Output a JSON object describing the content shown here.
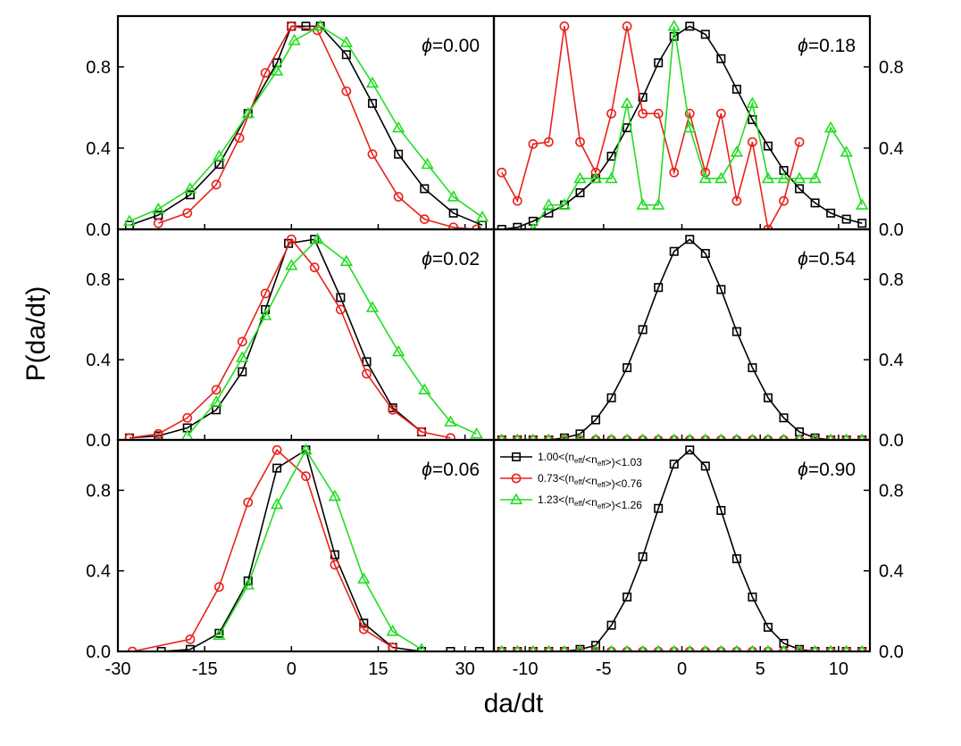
{
  "figure": {
    "ylabel": "P(da/dt)",
    "xlabel": "da/dt"
  },
  "legend": [
    {
      "label": "1.00<(n_eff/<n_eff>)<1.03",
      "prefix": "1.00<(n",
      "sub1": "eff",
      "mid": "/<n",
      "sub2": "eff",
      "suffix": ">)<1.03",
      "color": "#000000",
      "marker": "square"
    },
    {
      "label": "0.73<(n_eff/<n_eff>)<0.76",
      "prefix": "0.73<(n",
      "sub1": "eff",
      "mid": "/<n",
      "sub2": "eff",
      "suffix": ">)<0.76",
      "color": "#e8221c",
      "marker": "circle"
    },
    {
      "label": "1.23<(n_eff/<n_eff>)<1.26",
      "prefix": "1.23<(n",
      "sub1": "eff",
      "mid": "/<n",
      "sub2": "eff",
      "suffix": ">)<1.26",
      "color": "#22dd22",
      "marker": "triangle"
    }
  ],
  "chart_data": [
    {
      "type": "line",
      "panel": "top-left",
      "annotation": "ϕ=0.00",
      "xlim": [
        -30,
        35
      ],
      "ylim": [
        0,
        1.05
      ],
      "xticks": [
        -30,
        -15,
        0,
        15,
        30
      ],
      "yticks": [
        0.0,
        0.4,
        0.8
      ],
      "ytick_labels": [
        "0.0",
        "0.4",
        "0.8"
      ],
      "series": [
        {
          "name": "1.00<(n_eff/<n_eff>)<1.03",
          "color": "#000000",
          "marker": "square",
          "x": [
            -28,
            -23,
            -17.5,
            -12.5,
            -7.5,
            -2.5,
            0,
            2.5,
            5,
            9.5,
            14,
            18.5,
            23,
            28,
            33
          ],
          "y": [
            0.02,
            0.07,
            0.17,
            0.32,
            0.57,
            0.82,
            1.0,
            1.0,
            1.0,
            0.86,
            0.62,
            0.37,
            0.2,
            0.08,
            0.02
          ]
        },
        {
          "name": "0.73<(n_eff/<n_eff>)<0.76",
          "color": "#e8221c",
          "marker": "circle",
          "x": [
            -23,
            -18,
            -13,
            -9,
            -4.5,
            0,
            4.5,
            9.5,
            14,
            18.5,
            23,
            28,
            32
          ],
          "y": [
            0.03,
            0.08,
            0.22,
            0.45,
            0.77,
            1.0,
            0.98,
            0.68,
            0.37,
            0.16,
            0.05,
            0.01,
            0.0
          ]
        },
        {
          "name": "1.23<(n_eff/<n_eff>)<1.26",
          "color": "#22dd22",
          "marker": "triangle",
          "x": [
            -28,
            -23,
            -17.5,
            -12.5,
            -7.5,
            -2.5,
            0.5,
            5,
            9.5,
            14,
            18.5,
            23.5,
            28,
            33
          ],
          "y": [
            0.04,
            0.1,
            0.2,
            0.36,
            0.57,
            0.78,
            0.93,
            1.0,
            0.92,
            0.72,
            0.5,
            0.32,
            0.16,
            0.06
          ]
        }
      ]
    },
    {
      "type": "line",
      "panel": "middle-left",
      "annotation": "ϕ=0.02",
      "xlim": [
        -30,
        35
      ],
      "ylim": [
        0,
        1.05
      ],
      "xticks": [
        -30,
        -15,
        0,
        15,
        30
      ],
      "yticks": [
        0.0,
        0.4,
        0.8
      ],
      "ytick_labels": [
        "0.0",
        "0.4",
        "0.8"
      ],
      "series": [
        {
          "name": "1.00<(n_eff/<n_eff>)<1.03",
          "color": "#000000",
          "marker": "square",
          "x": [
            -28,
            -23,
            -18,
            -13,
            -8.5,
            -4.5,
            -0.5,
            4,
            8.5,
            13,
            17.5,
            22.5
          ],
          "y": [
            0.01,
            0.02,
            0.06,
            0.15,
            0.34,
            0.65,
            0.98,
            1.0,
            0.71,
            0.39,
            0.16,
            0.04
          ]
        },
        {
          "name": "0.73<(n_eff/<n_eff>)<0.76",
          "color": "#e8221c",
          "marker": "circle",
          "x": [
            -28,
            -23,
            -18,
            -13,
            -8.5,
            -4.5,
            0,
            4,
            8.5,
            13,
            17.5,
            22.5,
            27.5
          ],
          "y": [
            0.01,
            0.03,
            0.11,
            0.25,
            0.49,
            0.73,
            1.0,
            0.86,
            0.65,
            0.33,
            0.15,
            0.04,
            0.01
          ]
        },
        {
          "name": "1.23<(n_eff/<n_eff>)<1.26",
          "color": "#22dd22",
          "marker": "triangle",
          "x": [
            -18,
            -13,
            -8.5,
            -4.5,
            0,
            4.5,
            9.5,
            14,
            18.5,
            23,
            27.5,
            32
          ],
          "y": [
            0.02,
            0.19,
            0.41,
            0.62,
            0.87,
            1.0,
            0.89,
            0.66,
            0.44,
            0.25,
            0.09,
            0.03
          ]
        }
      ]
    },
    {
      "type": "line",
      "panel": "bottom-left",
      "annotation": "ϕ=0.06",
      "xlim": [
        -30,
        35
      ],
      "ylim": [
        0,
        1.05
      ],
      "xticks": [
        -30,
        -15,
        0,
        15,
        30
      ],
      "yticks": [
        0.0,
        0.4,
        0.8
      ],
      "xtick_labels": [
        "-30",
        "-15",
        "0",
        "15",
        "30"
      ],
      "ytick_labels": [
        "0.0",
        "0.4",
        "0.8"
      ],
      "series": [
        {
          "name": "1.00<(n_eff/<n_eff>)<1.03",
          "color": "#000000",
          "marker": "square",
          "x": [
            -22.5,
            -17.5,
            -12.5,
            -7.5,
            -2.5,
            2.5,
            7.5,
            12.5,
            17.5,
            22.5,
            27.5,
            32.5
          ],
          "y": [
            0.0,
            0.01,
            0.09,
            0.35,
            0.91,
            1.0,
            0.48,
            0.14,
            0.02,
            0.0,
            0.0,
            0.0
          ]
        },
        {
          "name": "0.73<(n_eff/<n_eff>)<0.76",
          "color": "#e8221c",
          "marker": "circle",
          "x": [
            -27.5,
            -17.5,
            -12.5,
            -7.5,
            -2.5,
            2.5,
            7.5,
            12.5,
            17.5
          ],
          "y": [
            0.0,
            0.06,
            0.32,
            0.74,
            1.0,
            0.87,
            0.43,
            0.11,
            0.02
          ]
        },
        {
          "name": "1.23<(n_eff/<n_eff>)<1.26",
          "color": "#22dd22",
          "marker": "triangle",
          "x": [
            -12.5,
            -7.5,
            -2.5,
            2.5,
            7.5,
            12.5,
            17.5,
            22.5
          ],
          "y": [
            0.08,
            0.33,
            0.73,
            1.0,
            0.77,
            0.36,
            0.1,
            0.01
          ]
        }
      ]
    },
    {
      "type": "line",
      "panel": "top-right",
      "annotation": "ϕ=0.18",
      "xlim": [
        -12,
        12
      ],
      "ylim": [
        0,
        1.05
      ],
      "xticks": [
        -10,
        -5,
        0,
        5,
        10
      ],
      "yticks": [
        0.0,
        0.4,
        0.8
      ],
      "ytick_labels": [
        "0.0",
        "0.4",
        "0.8"
      ],
      "series": [
        {
          "name": "1.00<(n_eff/<n_eff>)<1.03",
          "color": "#000000",
          "marker": "square",
          "x": [
            -11.5,
            -10.5,
            -9.5,
            -8.5,
            -7.5,
            -6.5,
            -5.5,
            -4.5,
            -3.5,
            -2.5,
            -1.5,
            -0.5,
            0.5,
            1.5,
            2.5,
            3.5,
            4.5,
            5.5,
            6.5,
            7.5,
            8.5,
            9.5,
            10.5,
            11.5
          ],
          "y": [
            0.0,
            0.01,
            0.04,
            0.08,
            0.12,
            0.18,
            0.25,
            0.36,
            0.5,
            0.65,
            0.82,
            0.95,
            1.0,
            0.96,
            0.84,
            0.69,
            0.54,
            0.41,
            0.29,
            0.2,
            0.13,
            0.08,
            0.05,
            0.03
          ]
        },
        {
          "name": "0.73<(n_eff/<n_eff>)<0.76",
          "color": "#e8221c",
          "marker": "circle",
          "x": [
            -11.5,
            -10.5,
            -9.5,
            -8.5,
            -7.5,
            -6.5,
            -5.5,
            -4.5,
            -3.5,
            -2.5,
            -1.5,
            -0.5,
            0.5,
            1.5,
            2.5,
            3.5,
            4.5,
            5.5,
            6.5,
            7.5
          ],
          "y": [
            0.28,
            0.14,
            0.42,
            0.43,
            1.0,
            0.43,
            0.28,
            0.57,
            1.0,
            0.57,
            0.57,
            0.28,
            0.57,
            0.28,
            0.57,
            0.14,
            0.43,
            0.0,
            0.14,
            0.43
          ]
        },
        {
          "name": "1.23<(n_eff/<n_eff>)<1.26",
          "color": "#22dd22",
          "marker": "triangle",
          "x": [
            -9.5,
            -8.5,
            -7.5,
            -6.5,
            -5.5,
            -4.5,
            -3.5,
            -2.5,
            -1.5,
            -0.5,
            0.5,
            1.5,
            2.5,
            3.5,
            4.5,
            5.5,
            6.5,
            7.5,
            8.5,
            9.5,
            10.5,
            11.5
          ],
          "y": [
            0.0,
            0.12,
            0.12,
            0.25,
            0.25,
            0.25,
            0.62,
            0.12,
            0.12,
            1.0,
            0.5,
            0.25,
            0.25,
            0.38,
            0.62,
            0.25,
            0.25,
            0.25,
            0.25,
            0.5,
            0.38,
            0.12
          ]
        }
      ]
    },
    {
      "type": "line",
      "panel": "middle-right",
      "annotation": "ϕ=0.54",
      "xlim": [
        -12,
        12
      ],
      "ylim": [
        0,
        1.05
      ],
      "xticks": [
        -10,
        -5,
        0,
        5,
        10
      ],
      "yticks": [
        0.0,
        0.4,
        0.8
      ],
      "ytick_labels": [
        "0.0",
        "0.4",
        "0.8"
      ],
      "series": [
        {
          "name": "1.00<(n_eff/<n_eff>)<1.03",
          "color": "#000000",
          "marker": "square",
          "x": [
            -11.5,
            -10.5,
            -9.5,
            -8.5,
            -7.5,
            -6.5,
            -5.5,
            -4.5,
            -3.5,
            -2.5,
            -1.5,
            -0.5,
            0.5,
            1.5,
            2.5,
            3.5,
            4.5,
            5.5,
            6.5,
            7.5,
            8.5,
            9.5,
            10.5,
            11.5
          ],
          "y": [
            0.0,
            0.0,
            0.0,
            0.0,
            0.01,
            0.03,
            0.1,
            0.21,
            0.36,
            0.55,
            0.76,
            0.94,
            1.0,
            0.93,
            0.75,
            0.54,
            0.36,
            0.21,
            0.11,
            0.04,
            0.01,
            0.0,
            0.0,
            0.0
          ]
        },
        {
          "name": "0.73<(n_eff/<n_eff>)<0.76",
          "color": "#e8221c",
          "marker": "circle",
          "x": [
            -11.5,
            -10.5,
            -9.5,
            -8.5,
            -7.5,
            -6.5,
            -5.5,
            -4.5,
            -3.5,
            -2.5,
            -1.5,
            -0.5,
            0.5,
            1.5,
            2.5,
            3.5,
            4.5,
            5.5,
            6.5,
            7.5,
            8.5,
            9.5,
            10.5,
            11.5
          ],
          "y": [
            0,
            0,
            0,
            0,
            0,
            0,
            0,
            0,
            0,
            0,
            0,
            0,
            0,
            0,
            0,
            0,
            0,
            0,
            0,
            0,
            0,
            0,
            0,
            0
          ]
        },
        {
          "name": "1.23<(n_eff/<n_eff>)<1.26",
          "color": "#22dd22",
          "marker": "triangle",
          "x": [
            -11.5,
            -10.5,
            -9.5,
            -8.5,
            -7.5,
            -6.5,
            -5.5,
            -4.5,
            -3.5,
            -2.5,
            -1.5,
            -0.5,
            0.5,
            1.5,
            2.5,
            3.5,
            4.5,
            5.5,
            6.5,
            7.5,
            8.5,
            9.5,
            10.5,
            11.5
          ],
          "y": [
            0,
            0,
            0,
            0,
            0,
            0,
            0,
            0,
            0,
            0,
            0,
            0,
            0,
            0,
            0,
            0,
            0,
            0,
            0,
            0,
            0,
            0,
            0,
            0
          ]
        }
      ]
    },
    {
      "type": "line",
      "panel": "bottom-right",
      "annotation": "ϕ=0.90",
      "xlim": [
        -12,
        12
      ],
      "ylim": [
        0,
        1.05
      ],
      "xticks": [
        -10,
        -5,
        0,
        5,
        10
      ],
      "yticks": [
        0.0,
        0.4,
        0.8
      ],
      "xtick_labels": [
        "-10",
        "-5",
        "0",
        "5",
        "10"
      ],
      "ytick_labels": [
        "0.0",
        "0.4",
        "0.8"
      ],
      "series": [
        {
          "name": "1.00<(n_eff/<n_eff>)<1.03",
          "color": "#000000",
          "marker": "square",
          "x": [
            -11.5,
            -10.5,
            -9.5,
            -8.5,
            -7.5,
            -6.5,
            -5.5,
            -4.5,
            -3.5,
            -2.5,
            -1.5,
            -0.5,
            0.5,
            1.5,
            2.5,
            3.5,
            4.5,
            5.5,
            6.5,
            7.5,
            8.5,
            9.5,
            10.5,
            11.5
          ],
          "y": [
            0.0,
            0.0,
            0.0,
            0.0,
            0.0,
            0.01,
            0.03,
            0.13,
            0.27,
            0.47,
            0.71,
            0.93,
            1.0,
            0.92,
            0.7,
            0.46,
            0.27,
            0.12,
            0.04,
            0.01,
            0.0,
            0.0,
            0.0,
            0.0
          ]
        },
        {
          "name": "0.73<(n_eff/<n_eff>)<0.76",
          "color": "#e8221c",
          "marker": "circle",
          "x": [
            -11.5,
            -10.5,
            -9.5,
            -8.5,
            -7.5,
            -6.5,
            -5.5,
            -4.5,
            -3.5,
            -2.5,
            -1.5,
            -0.5,
            0.5,
            1.5,
            2.5,
            3.5,
            4.5,
            5.5,
            6.5,
            7.5,
            8.5,
            9.5,
            10.5,
            11.5
          ],
          "y": [
            0,
            0,
            0,
            0,
            0,
            0,
            0,
            0,
            0,
            0,
            0,
            0,
            0,
            0,
            0,
            0,
            0,
            0,
            0,
            0,
            0,
            0,
            0,
            0
          ]
        },
        {
          "name": "1.23<(n_eff/<n_eff>)<1.26",
          "color": "#22dd22",
          "marker": "triangle",
          "x": [
            -11.5,
            -10.5,
            -9.5,
            -8.5,
            -7.5,
            -6.5,
            -5.5,
            -4.5,
            -3.5,
            -2.5,
            -1.5,
            -0.5,
            0.5,
            1.5,
            2.5,
            3.5,
            4.5,
            5.5,
            6.5,
            7.5,
            8.5,
            9.5,
            10.5,
            11.5
          ],
          "y": [
            0,
            0,
            0,
            0,
            0,
            0,
            0,
            0,
            0,
            0,
            0,
            0,
            0,
            0,
            0,
            0,
            0,
            0,
            0,
            0,
            0,
            0,
            0,
            0
          ]
        }
      ]
    }
  ]
}
